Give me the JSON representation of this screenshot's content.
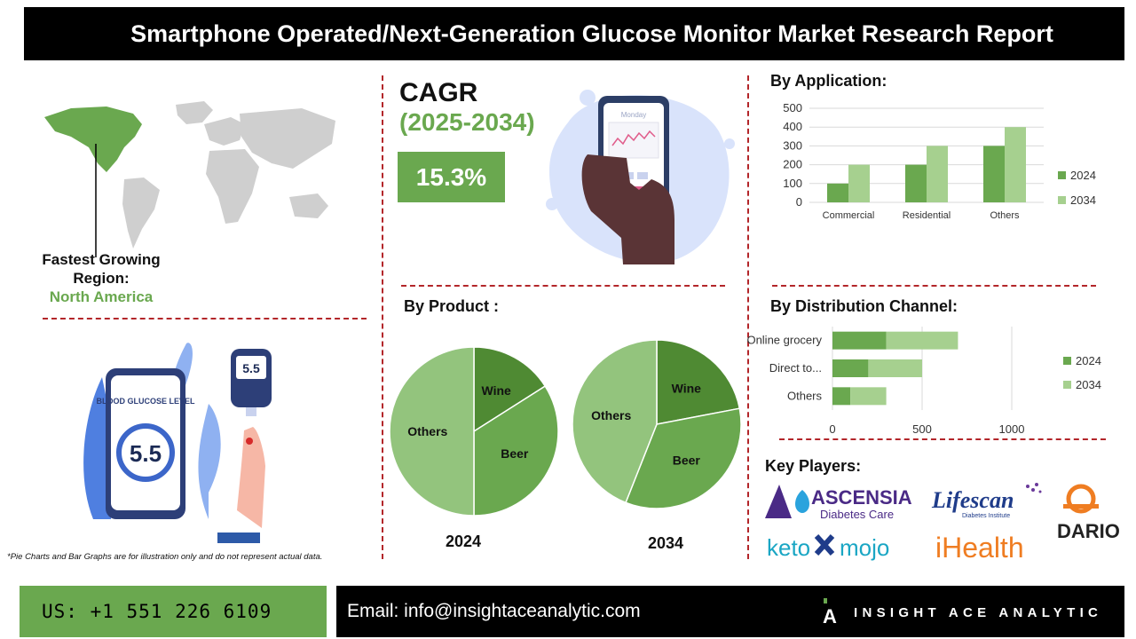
{
  "header": {
    "title": "Smartphone Operated/Next-Generation Glucose Monitor Market Research Report"
  },
  "cagr": {
    "title": "CAGR",
    "years": "(2025-2034)",
    "value": "15.3%"
  },
  "region": {
    "label": "Fastest Growing Region:",
    "value": "North America"
  },
  "phone_illustration": {
    "day": "Monday"
  },
  "meter_illustration": {
    "card_title": "BLOOD GLUCOSE LEVEL",
    "reading": "5.5",
    "device_reading": "5.5"
  },
  "sections": {
    "application": "By Application:",
    "product": "By Product :",
    "distribution": "By Distribution Channel:",
    "key_players": "Key Players:"
  },
  "disclaimer": "*Pie Charts and Bar Graphs are for illustration only and do not represent actual data.",
  "footer": {
    "phone": "US: +1 551 226 6109",
    "email": "Email: info@insightaceanalytic.com",
    "brand": "INSIGHT ACE ANALYTIC",
    "brand_initial": "A"
  },
  "players": {
    "ascensia": {
      "name": "ASCENSIA",
      "sub": "Diabetes Care"
    },
    "lifescan": {
      "name": "Lifescan",
      "sub": "Diabetes Institute"
    },
    "dario": {
      "name": "DARIO"
    },
    "ketomojo": {
      "name_a": "keto",
      "name_b": "mojo"
    },
    "ihealth": {
      "name": "iHealth"
    }
  },
  "colors": {
    "green_dark": "#5b9b3c",
    "green_mid": "#6aa84f",
    "green_light": "#a6d08f",
    "accent_red": "#b3262a"
  },
  "chart_data": [
    {
      "type": "bar",
      "title": "By Application:",
      "categories": [
        "Commercial",
        "Residential",
        "Others"
      ],
      "series": [
        {
          "name": "2024",
          "values": [
            100,
            200,
            300
          ]
        },
        {
          "name": "2034",
          "values": [
            200,
            300,
            400
          ]
        }
      ],
      "yticks": [
        "0",
        "100",
        "200",
        "300",
        "400",
        "500"
      ],
      "ylim": [
        0,
        500
      ],
      "grid": true,
      "legend": "right"
    },
    {
      "type": "bar",
      "orientation": "horizontal",
      "title": "By Distribution Channel:",
      "categories": [
        "Online grocery",
        "Direct to...",
        "Others"
      ],
      "series": [
        {
          "name": "2024",
          "values": [
            300,
            200,
            100
          ]
        },
        {
          "name": "2034",
          "values": [
            400,
            300,
            200
          ]
        }
      ],
      "stacked": true,
      "xticks": [
        "0",
        "500",
        "1000"
      ],
      "xlim": [
        0,
        1000
      ],
      "grid": true,
      "legend": "right"
    },
    {
      "type": "pie",
      "title": "By Product :",
      "label": "2024",
      "slices": [
        {
          "name": "Wine",
          "value": 16
        },
        {
          "name": "Beer",
          "value": 34
        },
        {
          "name": "Others",
          "value": 50
        }
      ]
    },
    {
      "type": "pie",
      "label": "2034",
      "slices": [
        {
          "name": "Wine",
          "value": 22
        },
        {
          "name": "Beer",
          "value": 34
        },
        {
          "name": "Others",
          "value": 44
        }
      ]
    }
  ]
}
